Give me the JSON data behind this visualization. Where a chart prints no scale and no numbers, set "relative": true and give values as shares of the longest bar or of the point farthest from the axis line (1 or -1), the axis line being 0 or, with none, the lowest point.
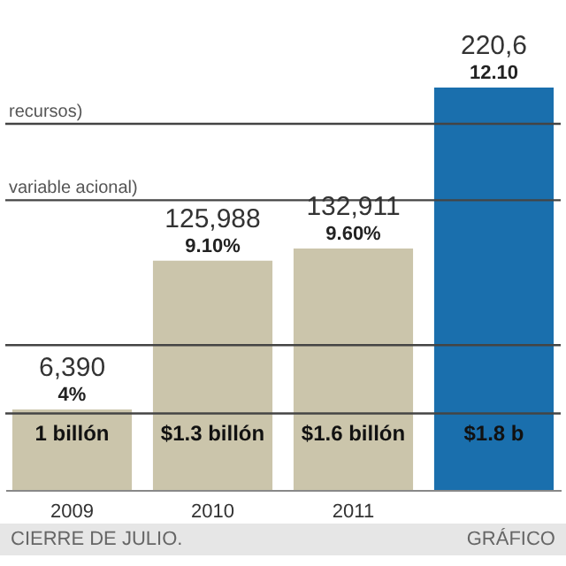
{
  "chart_data": {
    "type": "bar",
    "relative": true,
    "categories": [
      "2009",
      "2010",
      "2011",
      null
    ],
    "values": [
      0.2,
      0.57,
      0.6,
      1
    ],
    "colors": [
      "#cbc5ab",
      "#cbc5ab",
      "#cbc5ab",
      "#1a6fad"
    ],
    "annotations": [
      "6,390",
      "125,988",
      "132,911",
      "220,6",
      "4%",
      "9.10%",
      "9.60%",
      "12.10",
      "1 billón",
      "$1.3 billón",
      "$1.6 billón",
      "$1.8 b",
      "CIERRE DE JULIO.",
      "GRÁFICO"
    ],
    "ref_lines": [
      {
        "axis": "y",
        "value": 0.91,
        "label": "recursos)",
        "color": "#444444"
      },
      {
        "axis": "y",
        "value": 0.72,
        "label": "variable acional)",
        "color": "#444444"
      },
      {
        "axis": "y",
        "value": 0.36,
        "color": "#444444"
      },
      {
        "axis": "y",
        "value": 0.19,
        "color": "#444444"
      }
    ]
  }
}
